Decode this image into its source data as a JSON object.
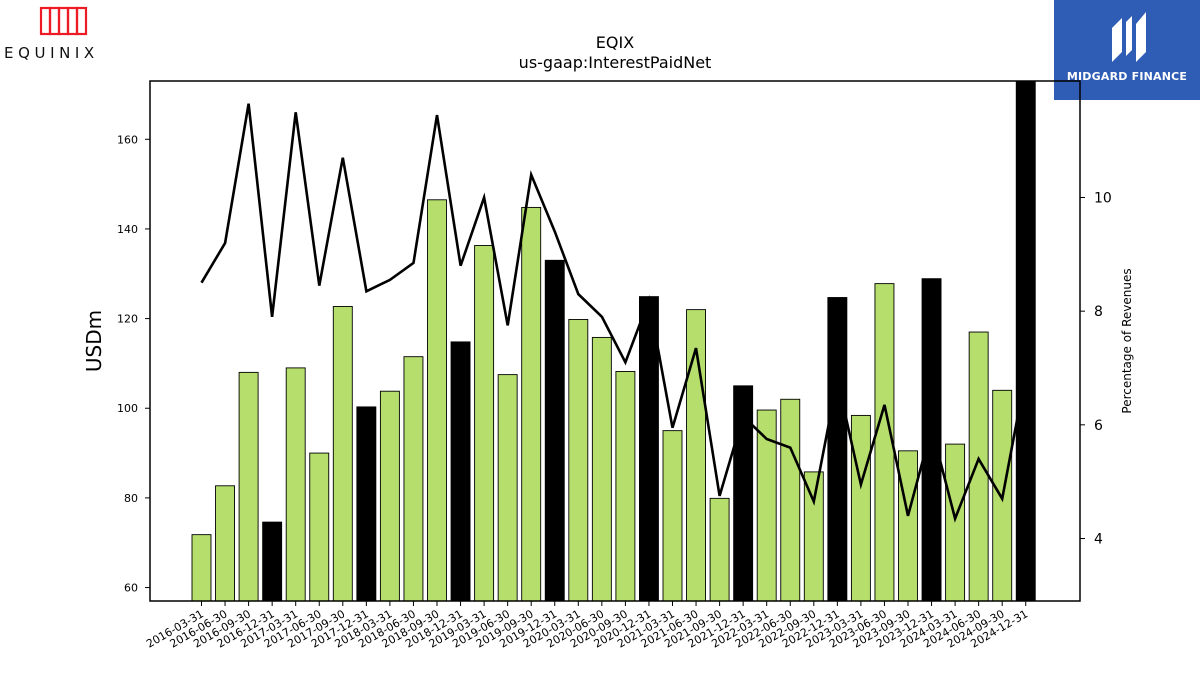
{
  "logos": {
    "left_text": "EQUINIX",
    "right_text": "MIDGARD FINANCE",
    "brand_red": "#ed1c24",
    "brand_blue": "#2f5db6"
  },
  "chart_data": {
    "type": "bar",
    "title": "EQIX",
    "subtitle": "us-gaap:InterestPaidNet",
    "ylabel": "USDm",
    "y2label": "Percentage of Revenues",
    "ylim": [
      57,
      173
    ],
    "y2lim": [
      2.9,
      12.05
    ],
    "yticks": [
      60,
      80,
      100,
      120,
      140,
      160
    ],
    "y2ticks": [
      4,
      6,
      8,
      10
    ],
    "grid": false,
    "categories": [
      "2016-03-31",
      "2016-06-30",
      "2016-09-30",
      "2016-12-31",
      "2017-03-31",
      "2017-06-30",
      "2017-09-30",
      "2017-12-31",
      "2018-03-31",
      "2018-06-30",
      "2018-09-30",
      "2018-12-31",
      "2019-03-31",
      "2019-06-30",
      "2019-09-30",
      "2019-12-31",
      "2020-03-31",
      "2020-06-30",
      "2020-09-30",
      "2020-12-31",
      "2021-03-31",
      "2021-06-30",
      "2021-09-30",
      "2021-12-31",
      "2022-03-31",
      "2022-06-30",
      "2022-09-30",
      "2022-12-31",
      "2023-03-31",
      "2023-06-30",
      "2023-09-30",
      "2023-12-31",
      "2024-03-31",
      "2024-06-30",
      "2024-09-30",
      "2024-12-31"
    ],
    "series": [
      {
        "kind": "bar",
        "values": [
          71.8,
          82.7,
          108,
          74.6,
          109,
          90,
          122.7,
          100.3,
          103.8,
          111.5,
          146.5,
          114.8,
          136.3,
          107.5,
          144.8,
          133,
          119.8,
          115.8,
          108.2,
          124.9,
          95,
          122,
          79.9,
          105,
          99.6,
          102,
          85.8,
          124.7,
          98.4,
          127.8,
          90.5,
          128.9,
          92,
          117,
          104,
          173
        ],
        "colors": [
          "#b5de6c",
          "#b5de6c",
          "#b5de6c",
          "#000000",
          "#b5de6c",
          "#b5de6c",
          "#b5de6c",
          "#000000",
          "#b5de6c",
          "#b5de6c",
          "#b5de6c",
          "#000000",
          "#b5de6c",
          "#b5de6c",
          "#b5de6c",
          "#000000",
          "#b5de6c",
          "#b5de6c",
          "#b5de6c",
          "#000000",
          "#b5de6c",
          "#b5de6c",
          "#b5de6c",
          "#000000",
          "#b5de6c",
          "#b5de6c",
          "#b5de6c",
          "#000000",
          "#b5de6c",
          "#b5de6c",
          "#b5de6c",
          "#000000",
          "#b5de6c",
          "#b5de6c",
          "#b5de6c",
          "#000000"
        ]
      },
      {
        "kind": "line",
        "axis": "right",
        "color": "#000000",
        "values": [
          8.5,
          9.2,
          11.65,
          7.9,
          11.5,
          8.45,
          10.7,
          8.35,
          8.55,
          8.85,
          11.45,
          8.8,
          10,
          7.75,
          10.4,
          9.4,
          8.3,
          7.9,
          7.1,
          8.2,
          5.95,
          7.35,
          4.75,
          6.15,
          5.75,
          5.6,
          4.65,
          6.8,
          4.95,
          6.35,
          4.4,
          5.95,
          4.35,
          5.4,
          4.7,
          6.9
        ]
      }
    ]
  }
}
